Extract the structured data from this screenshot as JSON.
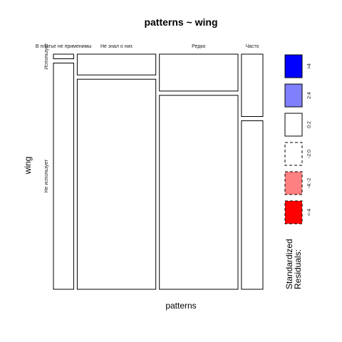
{
  "chart_data": {
    "type": "mosaic",
    "title": "patterns ~ wing",
    "xlabel": "patterns",
    "ylabel": "wing",
    "x_categories": [
      "В платье не применимы",
      "Не знал о них",
      "Редко",
      "Часто"
    ],
    "y_categories": [
      "Использует",
      "Не использует"
    ],
    "x_shares": [
      0.085,
      0.33,
      0.33,
      0.09
    ],
    "cells": [
      {
        "x": "В платье не применимы",
        "y": "Использует",
        "share": 0.02,
        "residual_class": "<-2:0"
      },
      {
        "x": "В платье не применимы",
        "y": "Не использует",
        "share": 0.98,
        "residual_class": "0:2"
      },
      {
        "x": "Не знал о них",
        "y": "Использует",
        "share": 0.09,
        "residual_class": "<-2:0"
      },
      {
        "x": "Не знал о них",
        "y": "Не использует",
        "share": 0.91,
        "residual_class": "0:2"
      },
      {
        "x": "Редко",
        "y": "Использует",
        "share": 0.16,
        "residual_class": "0:2"
      },
      {
        "x": "Редко",
        "y": "Не использует",
        "share": 0.84,
        "residual_class": "<-2:0"
      },
      {
        "x": "Часто",
        "y": "Использует",
        "share": 0.27,
        "residual_class": "0:2"
      },
      {
        "x": "Часто",
        "y": "Не использует",
        "share": 0.73,
        "residual_class": "<-2:0"
      }
    ],
    "legend": {
      "title_line1": "Standardized",
      "title_line2": "Residuals:",
      "position": "right",
      "items": [
        {
          "label": ">4",
          "fill": "#0000ff",
          "dashed": false
        },
        {
          "label": "2:4",
          "fill": "#8080ff",
          "dashed": false
        },
        {
          "label": "0:2",
          "fill": "#ffffff",
          "dashed": false
        },
        {
          "label": "-2:0",
          "fill": "#ffffff",
          "dashed": true
        },
        {
          "label": "-4:-2",
          "fill": "#ff8080",
          "dashed": true
        },
        {
          "label": "<-4",
          "fill": "#ff0000",
          "dashed": true
        }
      ]
    }
  }
}
